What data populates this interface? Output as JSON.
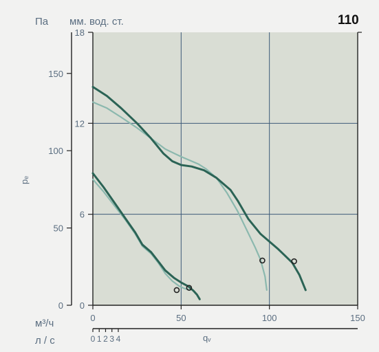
{
  "colors": {
    "background": "#f2f2f1",
    "plot_background": "#d9ddd4",
    "grid": "#3d5a78",
    "axis": "#222222",
    "text": "#5a6d80",
    "dark_curve": "#2b6355",
    "light_curve": "#8bb8ae",
    "title": "#111111"
  },
  "labels": {
    "unit_pa": "Па",
    "unit_mm": "мм. вод. ст.",
    "badge": "110",
    "ylabel": "pₑ",
    "xlabel": "qᵥ",
    "unit_m3h": "м³/ч",
    "unit_ls": "л / с"
  },
  "chart_data": {
    "type": "line",
    "title": "110",
    "xlabel": "qᵥ",
    "ylabel": "pₑ",
    "x_units": "м³/ч",
    "y_units": "мм. вод. ст.",
    "xlim": [
      0,
      150
    ],
    "ylim": [
      0,
      18
    ],
    "x_ticks": [
      0,
      50,
      100,
      150
    ],
    "y_ticks": [
      0,
      6,
      12,
      18
    ],
    "pa_axis": {
      "units": "Па",
      "ticks": [
        0,
        50,
        100,
        150
      ],
      "max": 176.6
    },
    "ls_axis": {
      "units": "л / с",
      "ticks": [
        0,
        1,
        2,
        3,
        4
      ],
      "max": 41.67
    },
    "grid": true,
    "series": [
      {
        "style": "light",
        "x": [
          0,
          8,
          16,
          25,
          33,
          41,
          50,
          55,
          60,
          64,
          70,
          76,
          82,
          87,
          92,
          95,
          97.5,
          98.5
        ],
        "y": [
          13.4,
          13.0,
          12.4,
          11.7,
          11.0,
          10.3,
          9.8,
          9.55,
          9.3,
          9.0,
          8.4,
          7.4,
          6.2,
          5.0,
          3.8,
          3.0,
          1.9,
          1.0
        ]
      },
      {
        "style": "dark",
        "x": [
          0,
          8,
          16,
          25,
          33,
          40,
          45,
          50,
          56,
          63,
          70,
          78,
          82,
          88,
          95,
          100,
          105,
          109,
          113,
          117,
          120.5
        ],
        "y": [
          14.4,
          13.8,
          13.0,
          12.0,
          11.0,
          10.0,
          9.5,
          9.25,
          9.15,
          8.9,
          8.4,
          7.6,
          6.9,
          5.7,
          4.7,
          4.2,
          3.7,
          3.25,
          2.8,
          2.0,
          1.0
        ]
      },
      {
        "style": "light",
        "x": [
          0,
          6,
          12,
          18,
          24,
          28,
          33,
          37,
          41,
          45,
          49,
          52,
          55
        ],
        "y": [
          8.3,
          7.5,
          6.6,
          5.7,
          4.7,
          3.9,
          3.4,
          2.8,
          2.1,
          1.6,
          1.25,
          1.1,
          1.0
        ]
      },
      {
        "style": "dark",
        "x": [
          0,
          6,
          12,
          18,
          24,
          28,
          33,
          37,
          41,
          46,
          50,
          54,
          57,
          59,
          60.5
        ],
        "y": [
          8.7,
          7.8,
          6.8,
          5.8,
          4.8,
          4.0,
          3.5,
          2.9,
          2.3,
          1.8,
          1.5,
          1.25,
          0.95,
          0.7,
          0.4
        ]
      }
    ],
    "markers": [
      {
        "x": 47.5,
        "y": 1.0
      },
      {
        "x": 54.5,
        "y": 1.15
      },
      {
        "x": 96,
        "y": 2.95
      },
      {
        "x": 114,
        "y": 2.9
      }
    ]
  }
}
